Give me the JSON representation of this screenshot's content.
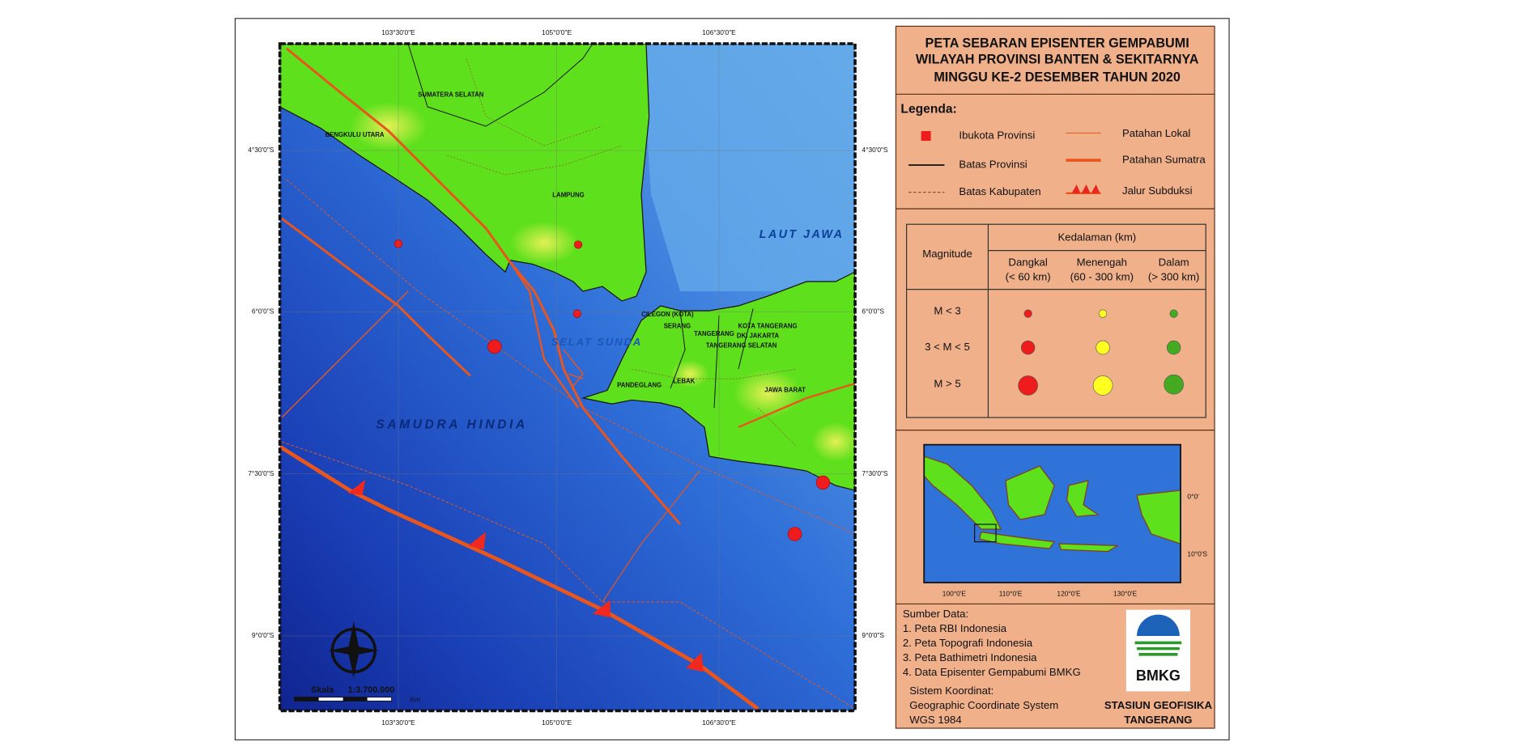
{
  "header": {
    "title_lines": [
      "PETA SEBARAN EPISENTER GEMPABUMI",
      "WILAYAH PROVINSI BANTEN & SEKITARNYA",
      "MINGGU KE-2 DESEMBER TAHUN 2020"
    ]
  },
  "map": {
    "lon_labels": [
      "103°30'0\"E",
      "105°0'0\"E",
      "106°30'0\"E"
    ],
    "lat_labels": [
      "4°30'0\"S",
      "6°0'0\"S",
      "7°30'0\"S",
      "9°0'0\"S"
    ],
    "places": [
      "SUMATERA SELATAN",
      "BENGKULU UTARA",
      "LAMPUNG",
      "LAUT JAWA",
      "CILEGON (KOTA)",
      "SERANG",
      "TANGERANG",
      "KOTA TANGERANG",
      "DKI JAKARTA",
      "TANGERANG SELATAN",
      "SELAT SUNDA",
      "PANDEGLANG",
      "LEBAK",
      "JAWA BARAT",
      "SAMUDRA HINDIA"
    ],
    "scale": {
      "label": "Skala",
      "ratio": "1:3.700.000",
      "unit": "Km"
    }
  },
  "legend": {
    "heading": "Legenda:",
    "items": [
      "Ibukota Provinsi",
      "Batas Provinsi",
      "Batas Kabupaten",
      "Patahan Lokal",
      "Patahan Sumatra",
      "Jalur Subduksi"
    ]
  },
  "magnitude_table": {
    "depth_header": "Kedalaman (km)",
    "magnitude_header": "Magnitude",
    "columns": [
      [
        "Dangkal",
        "(< 60 km)"
      ],
      [
        "Menengah",
        "(60 - 300 km)"
      ],
      [
        "Dalam",
        "(> 300 km)"
      ]
    ],
    "rows": [
      "M < 3",
      "3 < M < 5",
      "M > 5"
    ]
  },
  "inset": {
    "lon_labels": [
      "100°0'E",
      "110°0'E",
      "120°0'E",
      "130°0'E"
    ],
    "lat_labels": [
      "0°0'",
      "10°0'S"
    ]
  },
  "source": {
    "heading": "Sumber Data:",
    "items": [
      "1. Peta RBI Indonesia",
      "2. Peta Topografi Indonesia",
      "3. Peta Bathimetri Indonesia",
      "4. Data Episenter Gempabumi BMKG"
    ],
    "coordinate_heading": "Sistem Koordinat:",
    "coordinate_lines": [
      "Geographic Coordinate System",
      "WGS 1984"
    ]
  },
  "logo": "BMKG",
  "station": [
    "STASIUN GEOFISIKA",
    "TANGERANG"
  ]
}
